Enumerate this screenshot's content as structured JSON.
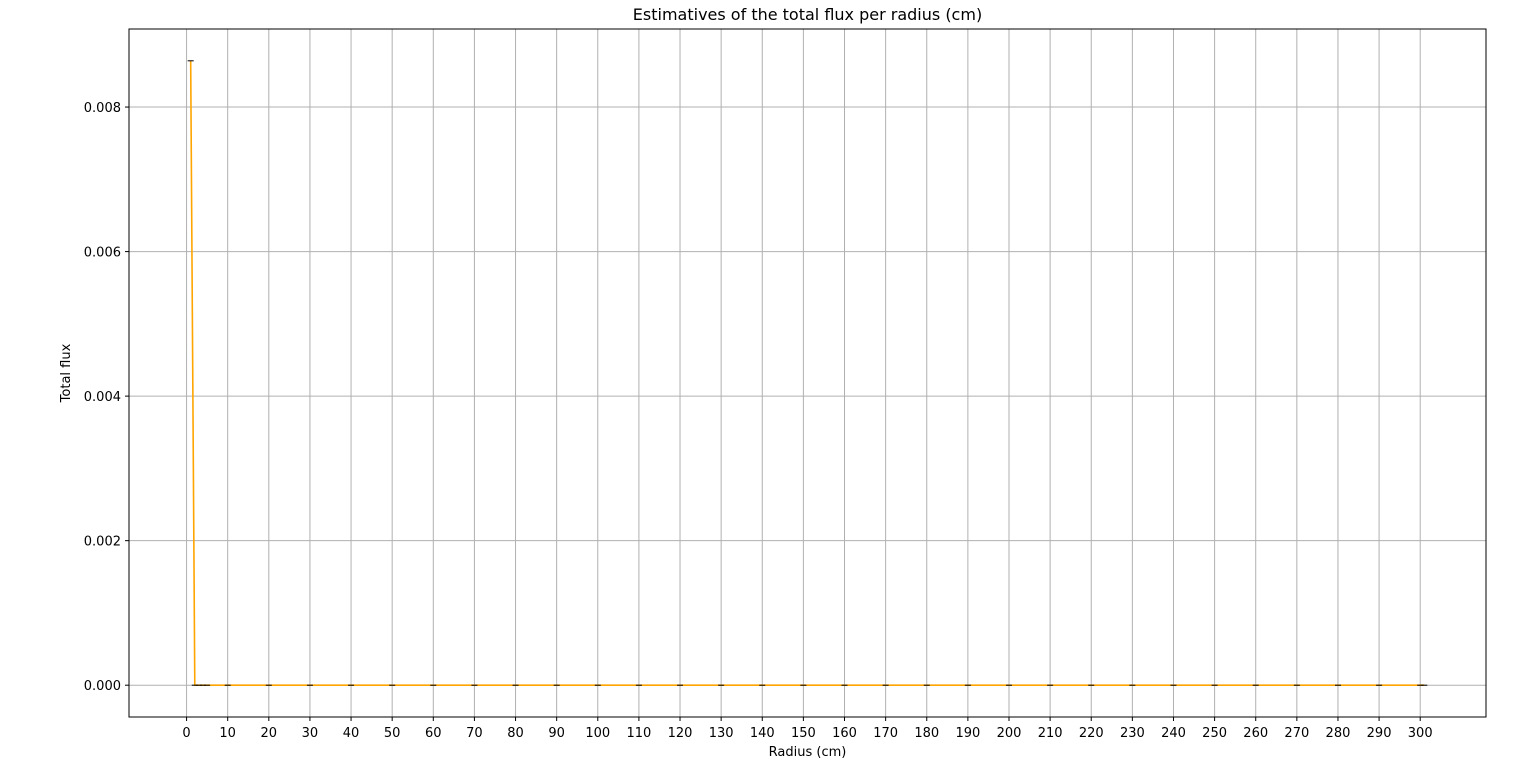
{
  "chart_data": {
    "type": "line",
    "title": "Estimatives of the total flux per radius (cm)",
    "xlabel": "Radius (cm)",
    "ylabel": "Total flux",
    "xlim": [
      -14,
      316
    ],
    "ylim": [
      -0.00044,
      0.00908
    ],
    "xticks": [
      0,
      10,
      20,
      30,
      40,
      50,
      60,
      70,
      80,
      90,
      100,
      110,
      120,
      130,
      140,
      150,
      160,
      170,
      180,
      190,
      200,
      210,
      220,
      230,
      240,
      250,
      260,
      270,
      280,
      290,
      300
    ],
    "yticks": [
      0.0,
      0.002,
      0.004,
      0.006,
      0.008
    ],
    "ytick_labels": [
      "0.000",
      "0.002",
      "0.004",
      "0.006",
      "0.008"
    ],
    "grid": true,
    "legend": "none",
    "series": [
      {
        "color": "#ffa500",
        "errorbar_color": "#000000",
        "x": [
          1,
          2,
          3,
          4,
          5,
          10,
          20,
          30,
          40,
          50,
          60,
          70,
          80,
          90,
          100,
          110,
          120,
          130,
          140,
          150,
          160,
          170,
          180,
          190,
          200,
          210,
          220,
          230,
          240,
          250,
          260,
          270,
          280,
          290,
          300,
          301
        ],
        "y": [
          0.00864,
          0.0,
          0.0,
          0.0,
          0.0,
          0.0,
          0.0,
          0.0,
          0.0,
          0.0,
          0.0,
          0.0,
          0.0,
          0.0,
          0.0,
          0.0,
          0.0,
          0.0,
          0.0,
          0.0,
          0.0,
          0.0,
          0.0,
          0.0,
          0.0,
          0.0,
          0.0,
          0.0,
          0.0,
          0.0,
          0.0,
          0.0,
          0.0,
          0.0,
          0.0,
          0.0
        ]
      }
    ]
  }
}
